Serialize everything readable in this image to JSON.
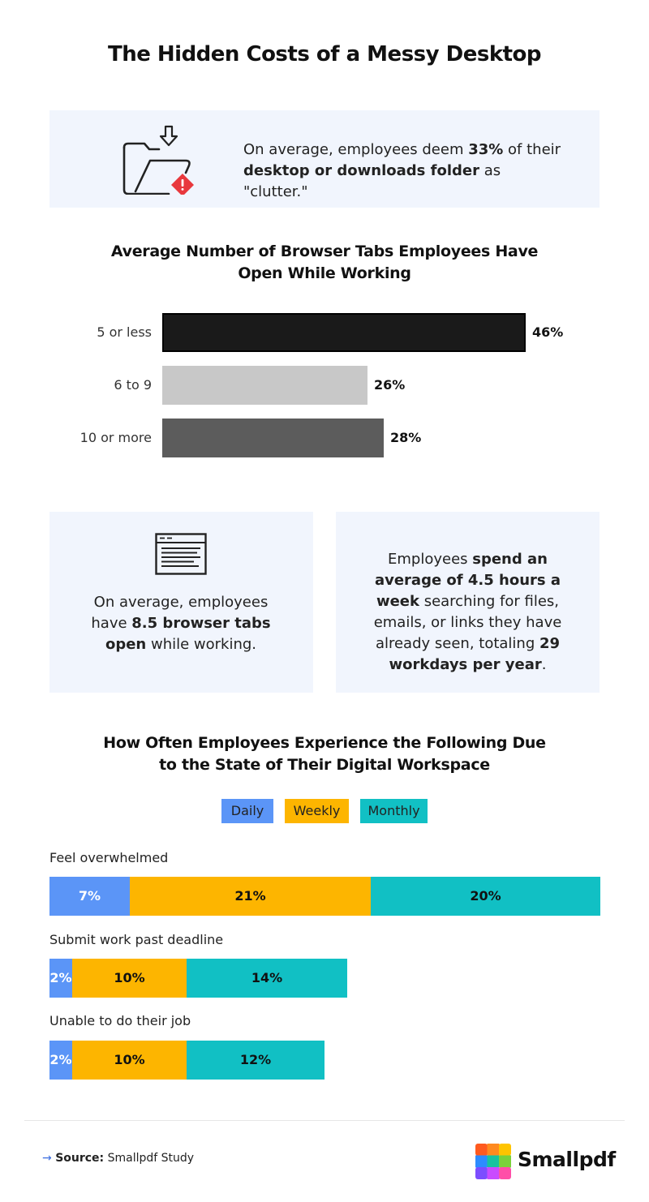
{
  "title": "The Hidden Costs of a Messy Desktop",
  "clutter_panel": {
    "icon": "folder-warning-icon",
    "text_pre": "On average, employees deem ",
    "text_b1": "33%",
    "text_mid": " of their ",
    "text_b2": "desktop or downloads folder",
    "text_post": " as \"clutter.\""
  },
  "tabs_chart_title_line1": "Average Number of Browser Tabs Employees Have",
  "tabs_chart_title_line2": "Open While Working",
  "cards": {
    "left": {
      "icon": "browser-window-icon",
      "text_pre": "On average, employees have ",
      "text_b": "8.5 browser tabs open",
      "text_post": " while working."
    },
    "right": {
      "text_pre": "Employees ",
      "text_b1": "spend an average of 4.5 hours a week",
      "text_mid": " searching for files, emails, or links they have already seen, totaling ",
      "text_b2": "29 workdays per year",
      "text_post": "."
    }
  },
  "frequency_title_line1": "How Often Employees Experience the Following Due",
  "frequency_title_line2": "to the State of Their Digital Workspace",
  "legend": [
    {
      "label": "Daily",
      "color": "#5b95f7"
    },
    {
      "label": "Weekly",
      "color": "#fdb500"
    },
    {
      "label": "Monthly",
      "color": "#11c0c4"
    }
  ],
  "chart_data": [
    {
      "type": "bar",
      "orientation": "horizontal",
      "title": "Average Number of Browser Tabs Employees Have Open While Working",
      "categories": [
        "5 or less",
        "6 to 9",
        "10 or more"
      ],
      "values": [
        46,
        26,
        28
      ],
      "value_labels": [
        "46%",
        "26%",
        "28%"
      ],
      "colors": [
        "#1a1a1a",
        "#c8c8c8",
        "#5c5c5c"
      ],
      "unit": "%",
      "xlim": [
        0,
        46
      ]
    },
    {
      "type": "bar",
      "orientation": "horizontal",
      "stacked": true,
      "title": "How Often Employees Experience the Following Due to the State of Their Digital Workspace",
      "categories": [
        "Feel overwhelmed",
        "Submit work past deadline",
        "Unable to do their job"
      ],
      "series": [
        {
          "name": "Daily",
          "values": [
            7,
            2,
            2
          ],
          "labels": [
            "7%",
            "2%",
            "2%"
          ],
          "color": "#5b95f7"
        },
        {
          "name": "Weekly",
          "values": [
            21,
            10,
            10
          ],
          "labels": [
            "21%",
            "10%",
            "10%"
          ],
          "color": "#fdb500"
        },
        {
          "name": "Monthly",
          "values": [
            20,
            14,
            12
          ],
          "labels": [
            "20%",
            "14%",
            "12%"
          ],
          "color": "#11c0c4"
        }
      ],
      "unit": "%",
      "xlim": [
        0,
        48
      ]
    }
  ],
  "footer": {
    "arrow": "→",
    "source_label": "Source:",
    "source_text": " Smallpdf Study",
    "brand": "Smallpdf",
    "logo_icon": "smallpdf-logo-icon"
  }
}
